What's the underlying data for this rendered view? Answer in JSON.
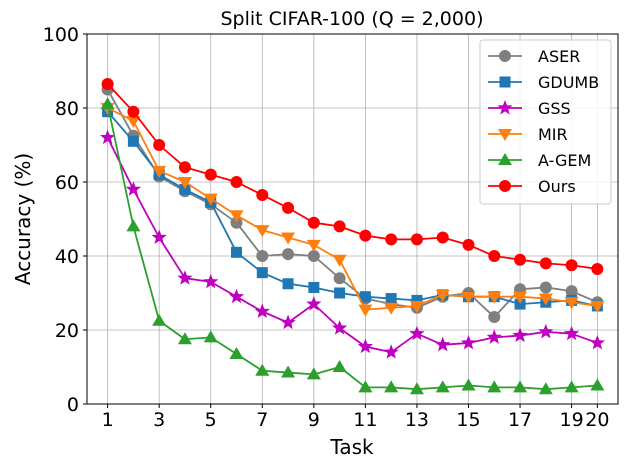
{
  "chart_data": {
    "type": "line",
    "title": "Split CIFAR-100 (Q = 2,000)",
    "xlabel": "Task",
    "ylabel": "Accuracy (%)",
    "xlim": [
      0.2,
      20.8
    ],
    "ylim": [
      0,
      100
    ],
    "xticks": [
      1,
      3,
      5,
      7,
      9,
      11,
      13,
      15,
      17,
      19,
      20
    ],
    "xtick_labels": [
      "1",
      "3",
      "5",
      "7",
      "9",
      "11",
      "13",
      "15",
      "17",
      "19",
      "20"
    ],
    "yticks": [
      0,
      20,
      40,
      60,
      80,
      100
    ],
    "ytick_labels": [
      "0",
      "20",
      "40",
      "60",
      "80",
      "100"
    ],
    "grid": true,
    "legend_position": "top-right",
    "x": [
      1,
      2,
      3,
      4,
      5,
      6,
      7,
      8,
      9,
      10,
      11,
      12,
      13,
      14,
      15,
      16,
      17,
      18,
      19,
      20
    ],
    "series": [
      {
        "name": "ASER",
        "color": "#7f7f7f",
        "marker": "circle",
        "values": [
          85.0,
          72.5,
          61.5,
          57.5,
          54.0,
          49.0,
          40.0,
          40.5,
          40.0,
          34.0,
          28.5,
          27.0,
          26.0,
          29.0,
          30.0,
          23.5,
          31.0,
          31.5,
          30.5,
          27.5
        ]
      },
      {
        "name": "GDUMB",
        "color": "#1f77b4",
        "marker": "square",
        "values": [
          79.0,
          71.0,
          62.0,
          58.0,
          54.5,
          41.0,
          35.5,
          32.5,
          31.5,
          30.0,
          29.0,
          28.5,
          28.0,
          29.5,
          29.0,
          29.0,
          27.0,
          27.5,
          28.0,
          26.5
        ]
      },
      {
        "name": "GSS",
        "color": "#c000c0",
        "marker": "star",
        "values": [
          72.0,
          58.0,
          45.0,
          34.0,
          33.0,
          29.0,
          25.0,
          22.0,
          27.0,
          20.5,
          15.5,
          14.0,
          19.0,
          16.0,
          16.5,
          18.0,
          18.5,
          19.5,
          19.0,
          16.5
        ]
      },
      {
        "name": "MIR",
        "color": "#ff7f0e",
        "marker": "triangle-down",
        "values": [
          80.0,
          76.5,
          63.0,
          60.0,
          55.5,
          51.0,
          47.0,
          45.0,
          43.0,
          39.0,
          25.5,
          26.0,
          26.5,
          29.5,
          29.0,
          29.0,
          29.0,
          28.5,
          27.5,
          26.5
        ]
      },
      {
        "name": "A-GEM",
        "color": "#2ca02c",
        "marker": "triangle-up",
        "values": [
          81.0,
          48.0,
          22.5,
          17.5,
          18.0,
          13.5,
          9.0,
          8.5,
          8.0,
          10.0,
          4.5,
          4.5,
          4.0,
          4.5,
          5.0,
          4.5,
          4.5,
          4.0,
          4.5,
          5.0
        ]
      },
      {
        "name": "Ours",
        "color": "#ff0000",
        "marker": "circle",
        "values": [
          86.5,
          79.0,
          70.0,
          64.0,
          62.0,
          60.0,
          56.5,
          53.0,
          49.0,
          48.0,
          45.5,
          44.5,
          44.5,
          45.0,
          43.0,
          40.0,
          39.0,
          38.0,
          37.5,
          36.5
        ]
      }
    ]
  }
}
